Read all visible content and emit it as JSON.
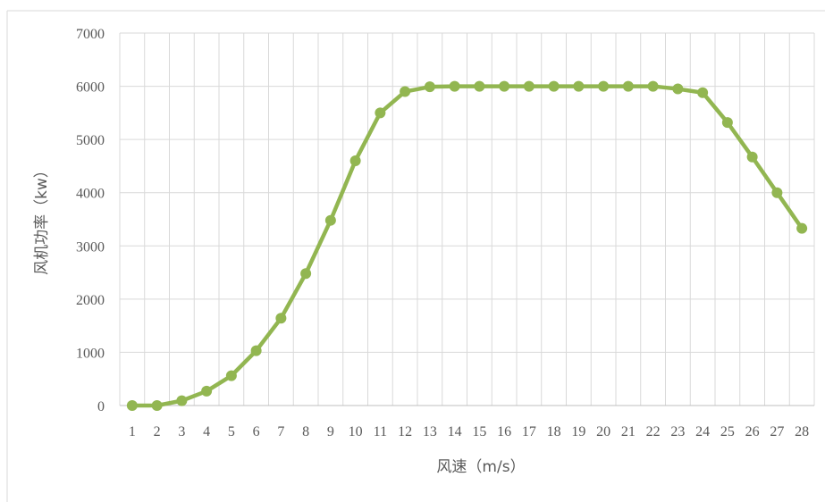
{
  "chart_data": {
    "type": "line",
    "title": "",
    "xlabel": "风速（m/s）",
    "ylabel": "风机功率（kw）",
    "x": [
      1,
      2,
      3,
      4,
      5,
      6,
      7,
      8,
      9,
      10,
      11,
      12,
      13,
      14,
      15,
      16,
      17,
      18,
      19,
      20,
      21,
      22,
      23,
      24,
      25,
      26,
      27,
      28
    ],
    "ylim": [
      0,
      7000
    ],
    "yticks": [
      0,
      1000,
      2000,
      3000,
      4000,
      5000,
      6000,
      7000
    ],
    "grid": true,
    "legend": "none",
    "series": [
      {
        "color": "#92b651",
        "values": [
          0,
          0,
          90,
          270,
          560,
          1030,
          1640,
          2480,
          3480,
          4600,
          5500,
          5900,
          5990,
          6000,
          6000,
          6000,
          6000,
          6000,
          6000,
          6000,
          6000,
          6000,
          5950,
          5880,
          5320,
          4670,
          4000,
          3330
        ]
      }
    ]
  }
}
